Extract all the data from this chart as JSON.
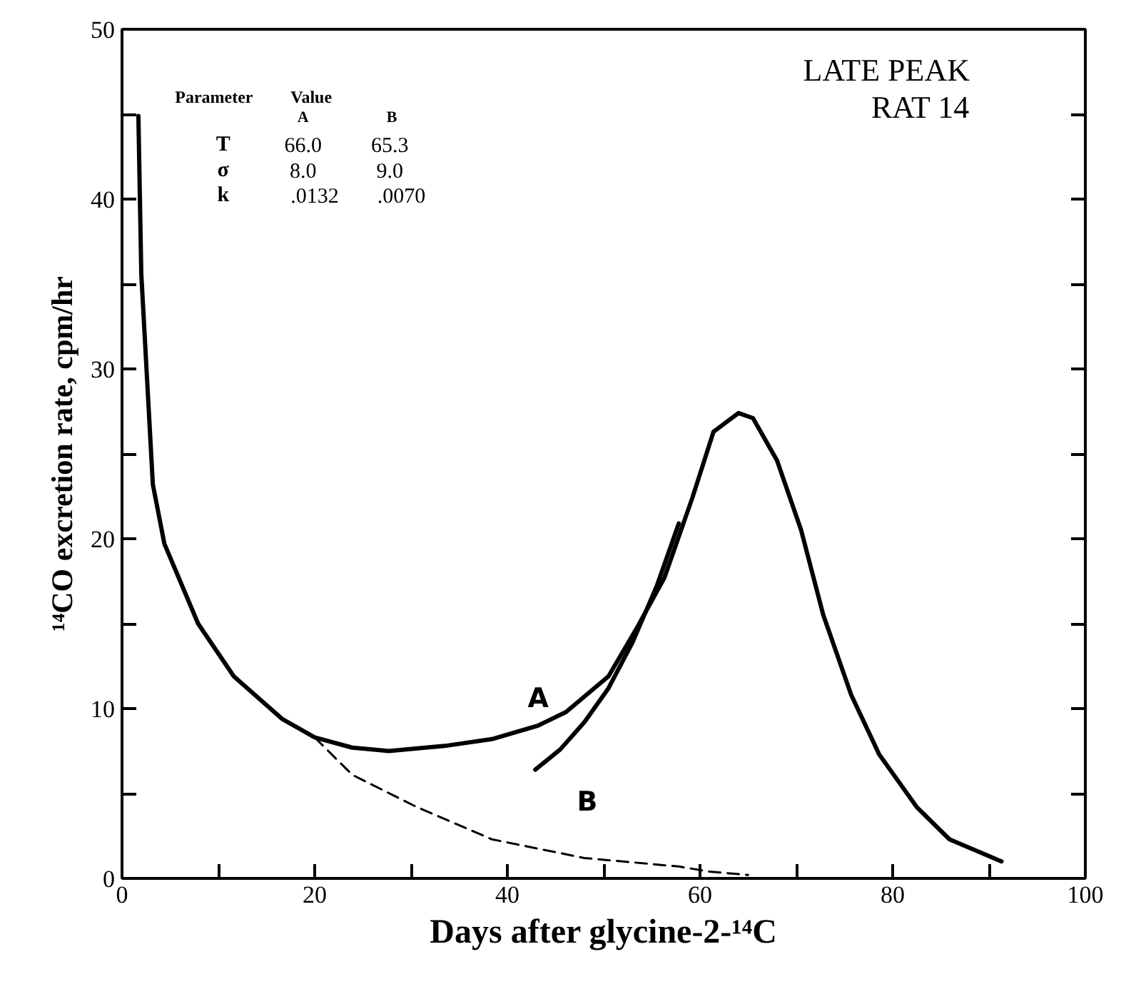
{
  "chart_data": {
    "type": "line",
    "xlabel": "Days after glycine-2-¹⁴C",
    "ylabel": "¹⁴CO excretion rate, cpm/hr",
    "xlim": [
      0,
      100
    ],
    "ylim": [
      0,
      50
    ],
    "xticks": [
      0,
      {
        "value": 10,
        "label": null
      },
      20,
      {
        "value": 30,
        "label": null
      },
      40,
      {
        "value": 50,
        "label": null
      },
      60,
      {
        "value": 70,
        "label": null
      },
      80,
      {
        "value": 90,
        "label": null
      },
      100
    ],
    "yticks": [
      0,
      {
        "value": 5,
        "label": null
      },
      10,
      {
        "value": 15,
        "label": null
      },
      20,
      {
        "value": 25,
        "label": null
      },
      30,
      {
        "value": 35,
        "label": null
      },
      40,
      {
        "value": 45,
        "label": null
      },
      50
    ],
    "grid": false,
    "marker": "none",
    "series": [
      {
        "name": "A",
        "color": "#000000",
        "line_style": "solid",
        "x": [
          1.7,
          2.0,
          3.2,
          4.4,
          7.9,
          11.6,
          16.6,
          20.0,
          23.9,
          27.7,
          33.5,
          38.4,
          43.2,
          46.1,
          50.5,
          53.4,
          56.3,
          59.2,
          61.4,
          64.0,
          65.5,
          68.0,
          70.5,
          72.8,
          75.7,
          78.6,
          82.5,
          85.9,
          91.3
        ],
        "values": [
          44.9,
          35.6,
          23.2,
          19.7,
          15.0,
          11.9,
          9.4,
          8.3,
          7.7,
          7.5,
          7.8,
          8.2,
          9.0,
          9.8,
          11.9,
          14.7,
          17.7,
          22.4,
          26.3,
          27.4,
          27.1,
          24.6,
          20.5,
          15.5,
          10.8,
          7.3,
          4.2,
          2.3,
          1.0
        ]
      },
      {
        "name": "B",
        "color": "#000000",
        "line_style": "solid",
        "x": [
          42.9,
          45.5,
          48.0,
          50.5,
          53.0,
          55.5,
          57.8
        ],
        "values": [
          6.4,
          7.6,
          9.2,
          11.2,
          13.9,
          17.2,
          20.9
        ]
      },
      {
        "color": "#000000",
        "line_style": "dashed",
        "x": [
          20.0,
          23.9,
          30.6,
          38.4,
          48.0,
          57.8,
          61.0,
          65.0
        ],
        "values": [
          8.3,
          6.1,
          4.2,
          2.3,
          1.2,
          0.7,
          0.4,
          0.2
        ]
      }
    ],
    "annotations": [
      "LATE PEAK",
      "RAT 14",
      "Parameter",
      "Value",
      "A",
      "B",
      "T",
      "66.0",
      "65.3",
      "σ",
      "8.0",
      "9.0",
      "k",
      ".0132",
      ".0070"
    ]
  }
}
